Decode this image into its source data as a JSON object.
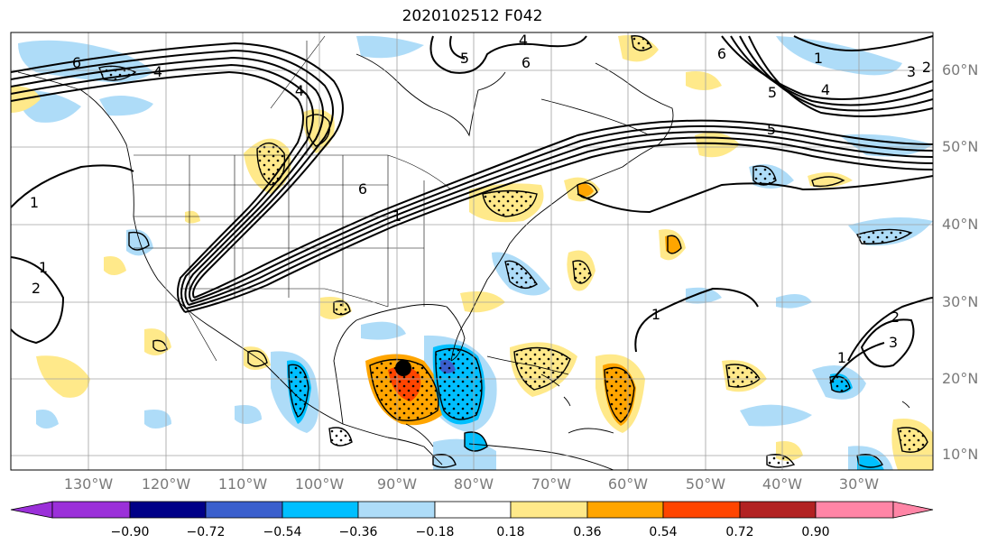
{
  "title": "2020102512 F042",
  "map": {
    "lat_labels": [
      "60°N",
      "50°N",
      "40°N",
      "30°N",
      "20°N",
      "10°N"
    ],
    "lon_labels": [
      "130°W",
      "120°W",
      "110°W",
      "100°W",
      "90°W",
      "80°W",
      "70°W",
      "60°W",
      "50°W",
      "40°W",
      "30°W"
    ],
    "contour_labels": [
      "6",
      "4",
      "4",
      "5",
      "6",
      "6",
      "5",
      "4",
      "3",
      "2",
      "1",
      "5",
      "6",
      "1",
      "1",
      "2",
      "1",
      "2",
      "3",
      "1",
      "4",
      "1"
    ],
    "fill_colors": {
      "neg_090": "#9b30d9",
      "neg_072": "#000087",
      "neg_054": "#3a5fcd",
      "neg_036": "#00bfff",
      "neg_018": "#aedcf8",
      "neutral": "#ffffff",
      "pos_018": "#ffe98a",
      "pos_036": "#ffa500",
      "pos_054": "#ff4500",
      "pos_072": "#b22222",
      "pos_090": "#ff85a6"
    }
  },
  "colorbar": {
    "labels": [
      "−0.90",
      "−0.72",
      "−0.54",
      "−0.36",
      "−0.18",
      "0.18",
      "0.36",
      "0.54",
      "0.72",
      "0.90"
    ],
    "colors": [
      "#9b30d9",
      "#000087",
      "#3a5fcd",
      "#00bfff",
      "#aedcf8",
      "#ffffff",
      "#ffe98a",
      "#ffa500",
      "#ff4500",
      "#b22222",
      "#ff85a6"
    ]
  }
}
